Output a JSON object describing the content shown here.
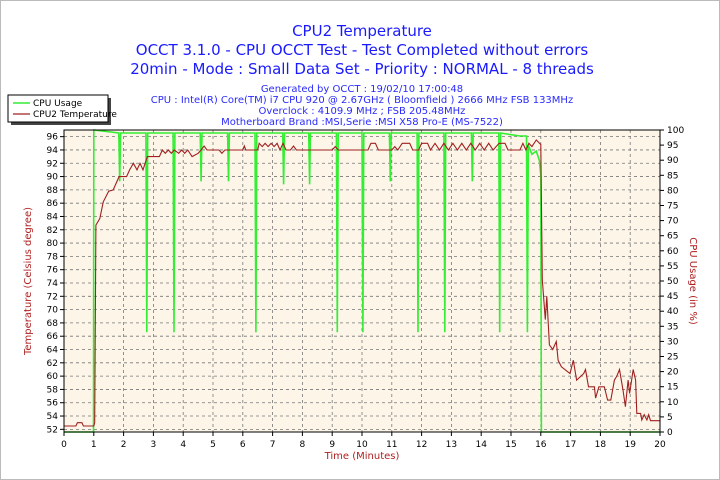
{
  "chart_data": {
    "type": "line",
    "title": "CPU2 Temperature",
    "subtitle_lines": [
      "OCCT 3.1.0 - CPU OCCT Test - Test Completed without errors",
      "20min - Mode : Small Data Set - Priority : NORMAL - 8 threads"
    ],
    "info_lines": [
      "Generated by OCCT : 19/02/10 17:00:48",
      "CPU : Intel(R) Core(TM) i7 CPU 920 @ 2.67GHz ( Bloomfield ) 2666 MHz FSB 133MHz",
      "Overclock : 4109.9 MHz ; FSB 205.48MHz",
      "Motherboard Brand :MSI,Serie :MSI X58 Pro-E (MS-7522)"
    ],
    "xlabel": "Time (Minutes)",
    "ylabel": "Temperature (Celsius degree)",
    "y2label": "CPU Usage (in %)",
    "xlim": [
      0,
      20
    ],
    "ylim": [
      51.6,
      97
    ],
    "y2lim": [
      0,
      100
    ],
    "x_ticks": [
      0,
      1,
      2,
      3,
      4,
      5,
      6,
      7,
      8,
      9,
      10,
      11,
      12,
      13,
      14,
      15,
      16,
      17,
      18,
      19,
      20
    ],
    "y_ticks": [
      52,
      54,
      56,
      58,
      60,
      62,
      64,
      66,
      68,
      70,
      72,
      74,
      76,
      78,
      80,
      82,
      84,
      86,
      88,
      90,
      92,
      94,
      96
    ],
    "y2_ticks": [
      0,
      5,
      10,
      15,
      20,
      25,
      30,
      35,
      40,
      45,
      50,
      55,
      60,
      65,
      70,
      75,
      80,
      85,
      90,
      95,
      100
    ],
    "grid": true,
    "legend_position": "top-left",
    "colors": {
      "title": "#1a1aff",
      "axis_title": "#b02020",
      "plot_bg": "#fdf6e8",
      "usage": "#33ee33",
      "temperature": "#a02020"
    },
    "series": [
      {
        "name": "CPU Usage",
        "axis": "right",
        "color": "#33ee33",
        "points": [
          [
            0,
            0
          ],
          [
            0.99,
            0
          ],
          [
            1.0,
            100
          ],
          [
            1.84,
            99
          ],
          [
            1.87,
            83
          ],
          [
            1.9,
            99
          ],
          [
            2.75,
            99
          ],
          [
            2.78,
            33
          ],
          [
            2.81,
            99
          ],
          [
            3.66,
            99
          ],
          [
            3.69,
            33
          ],
          [
            3.72,
            99
          ],
          [
            4.57,
            99
          ],
          [
            4.6,
            83
          ],
          [
            4.63,
            99
          ],
          [
            5.49,
            99
          ],
          [
            5.52,
            83
          ],
          [
            5.55,
            99
          ],
          [
            6.41,
            99
          ],
          [
            6.44,
            33
          ],
          [
            6.47,
            99
          ],
          [
            7.34,
            99
          ],
          [
            7.37,
            82
          ],
          [
            7.4,
            99
          ],
          [
            8.21,
            99
          ],
          [
            8.24,
            82
          ],
          [
            8.27,
            99
          ],
          [
            9.14,
            99
          ],
          [
            9.17,
            33
          ],
          [
            9.2,
            99
          ],
          [
            10.0,
            99
          ],
          [
            10.03,
            33
          ],
          [
            10.06,
            99
          ],
          [
            10.92,
            99
          ],
          [
            10.95,
            83
          ],
          [
            10.98,
            99
          ],
          [
            11.85,
            99
          ],
          [
            11.88,
            33
          ],
          [
            11.91,
            99
          ],
          [
            12.75,
            99
          ],
          [
            12.78,
            33
          ],
          [
            12.81,
            99
          ],
          [
            13.67,
            99
          ],
          [
            13.7,
            83
          ],
          [
            13.73,
            99
          ],
          [
            14.59,
            99
          ],
          [
            14.62,
            33
          ],
          [
            14.65,
            99
          ],
          [
            15.3,
            98
          ],
          [
            15.52,
            98
          ],
          [
            15.55,
            33
          ],
          [
            15.58,
            95
          ],
          [
            15.7,
            92
          ],
          [
            15.85,
            93
          ],
          [
            15.95,
            90
          ],
          [
            16.0,
            85
          ],
          [
            16.02,
            0
          ],
          [
            20,
            0
          ]
        ]
      },
      {
        "name": "CPU2 Temperature",
        "axis": "left",
        "color": "#a02020",
        "points": [
          [
            0,
            52.5
          ],
          [
            0.4,
            52.5
          ],
          [
            0.45,
            53
          ],
          [
            0.6,
            53
          ],
          [
            0.65,
            52.5
          ],
          [
            1.0,
            52.5
          ],
          [
            1.03,
            53
          ],
          [
            1.07,
            82.7
          ],
          [
            1.2,
            83.7
          ],
          [
            1.32,
            86.2
          ],
          [
            1.5,
            87.8
          ],
          [
            1.65,
            88
          ],
          [
            1.85,
            90
          ],
          [
            2.1,
            90
          ],
          [
            2.2,
            91
          ],
          [
            2.33,
            92
          ],
          [
            2.45,
            91
          ],
          [
            2.55,
            92
          ],
          [
            2.65,
            91
          ],
          [
            2.72,
            92
          ],
          [
            2.8,
            93
          ],
          [
            3.2,
            93
          ],
          [
            3.3,
            94
          ],
          [
            3.4,
            93.5
          ],
          [
            3.5,
            94
          ],
          [
            3.6,
            93.5
          ],
          [
            3.7,
            94
          ],
          [
            3.85,
            93.5
          ],
          [
            3.95,
            94
          ],
          [
            4.05,
            93.5
          ],
          [
            4.15,
            94
          ],
          [
            4.3,
            93
          ],
          [
            4.5,
            93.5
          ],
          [
            4.6,
            94
          ],
          [
            4.7,
            94.6
          ],
          [
            4.8,
            94
          ],
          [
            5.2,
            94
          ],
          [
            5.3,
            93.5
          ],
          [
            5.4,
            94
          ],
          [
            6.0,
            94
          ],
          [
            6.05,
            94.6
          ],
          [
            6.1,
            94
          ],
          [
            6.5,
            94
          ],
          [
            6.55,
            95
          ],
          [
            6.65,
            94.5
          ],
          [
            6.75,
            95
          ],
          [
            6.85,
            94.5
          ],
          [
            6.95,
            95
          ],
          [
            7.05,
            94.5
          ],
          [
            7.15,
            95
          ],
          [
            7.25,
            94
          ],
          [
            7.35,
            95
          ],
          [
            7.45,
            94
          ],
          [
            7.6,
            94
          ],
          [
            7.7,
            94.6
          ],
          [
            7.8,
            94
          ],
          [
            9.0,
            94
          ],
          [
            9.1,
            94.5
          ],
          [
            9.2,
            94
          ],
          [
            10.2,
            94
          ],
          [
            10.3,
            95
          ],
          [
            10.45,
            95
          ],
          [
            10.55,
            94
          ],
          [
            11.0,
            94
          ],
          [
            11.1,
            94.5
          ],
          [
            11.2,
            94
          ],
          [
            11.35,
            95
          ],
          [
            11.6,
            95
          ],
          [
            11.7,
            94
          ],
          [
            11.9,
            94
          ],
          [
            12.0,
            95
          ],
          [
            12.2,
            95
          ],
          [
            12.3,
            94
          ],
          [
            12.45,
            95
          ],
          [
            12.6,
            94
          ],
          [
            12.75,
            95
          ],
          [
            12.9,
            94
          ],
          [
            13.05,
            95
          ],
          [
            13.2,
            94
          ],
          [
            13.35,
            95
          ],
          [
            13.5,
            94
          ],
          [
            13.65,
            95
          ],
          [
            13.8,
            94
          ],
          [
            13.95,
            95
          ],
          [
            14.1,
            94
          ],
          [
            14.25,
            95
          ],
          [
            14.4,
            94
          ],
          [
            14.6,
            95
          ],
          [
            14.8,
            95
          ],
          [
            14.9,
            94
          ],
          [
            15.3,
            94
          ],
          [
            15.4,
            95
          ],
          [
            15.5,
            94
          ],
          [
            15.6,
            95
          ],
          [
            15.7,
            94.5
          ],
          [
            15.85,
            95.5
          ],
          [
            16.0,
            94.8
          ],
          [
            16.05,
            74.5
          ],
          [
            16.15,
            68.5
          ],
          [
            16.2,
            72
          ],
          [
            16.29,
            64.7
          ],
          [
            16.4,
            64
          ],
          [
            16.52,
            65.2
          ],
          [
            16.58,
            62.4
          ],
          [
            16.69,
            61.4
          ],
          [
            16.98,
            60.4
          ],
          [
            17.09,
            62.4
          ],
          [
            17.2,
            59.4
          ],
          [
            17.44,
            60.4
          ],
          [
            17.5,
            61
          ],
          [
            17.6,
            58.4
          ],
          [
            17.8,
            58.4
          ],
          [
            17.84,
            56.7
          ],
          [
            17.95,
            58.4
          ],
          [
            18.13,
            58.4
          ],
          [
            18.24,
            56.4
          ],
          [
            18.35,
            56.4
          ],
          [
            18.47,
            59.4
          ],
          [
            18.55,
            60
          ],
          [
            18.64,
            61
          ],
          [
            18.76,
            57.9
          ],
          [
            18.84,
            55.4
          ],
          [
            18.93,
            59.4
          ],
          [
            18.98,
            57.4
          ],
          [
            19.1,
            61
          ],
          [
            19.18,
            59.4
          ],
          [
            19.22,
            54.4
          ],
          [
            19.35,
            54.4
          ],
          [
            19.39,
            53.4
          ],
          [
            19.47,
            54.2
          ],
          [
            19.56,
            53.4
          ],
          [
            19.62,
            54.2
          ],
          [
            19.68,
            53.3
          ],
          [
            20,
            53.3
          ]
        ]
      }
    ]
  }
}
